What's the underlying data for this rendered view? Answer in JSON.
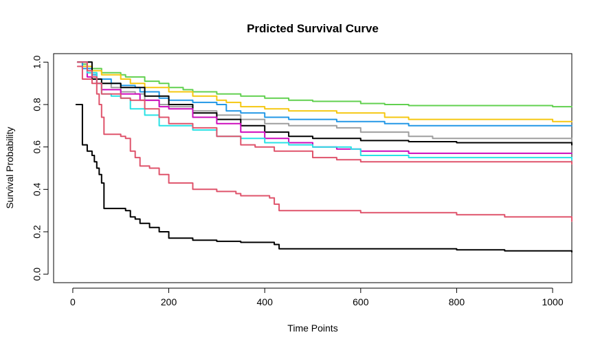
{
  "chart_data": {
    "type": "line",
    "step": true,
    "title": "Prdicted Survival Curve",
    "xlabel": "Time Points",
    "ylabel": "Survival Probability",
    "xlim": [
      -40,
      1040
    ],
    "ylim": [
      -0.04,
      1.04
    ],
    "x_ticks": [
      0,
      200,
      400,
      600,
      800,
      1000
    ],
    "y_ticks": [
      0.0,
      0.2,
      0.4,
      0.6,
      0.8,
      1.0
    ],
    "y_tick_labels": [
      "0.0",
      "0.2",
      "0.4",
      "0.6",
      "0.8",
      "1.0"
    ],
    "grid": false,
    "legend": "none",
    "series": [
      {
        "color": "#61D04F",
        "width": 2,
        "x": [
          10,
          20,
          30,
          40,
          60,
          100,
          110,
          150,
          180,
          200,
          230,
          250,
          300,
          350,
          400,
          450,
          500,
          600,
          650,
          700,
          1000,
          1040
        ],
        "y": [
          1.0,
          0.99,
          0.98,
          0.97,
          0.95,
          0.94,
          0.93,
          0.91,
          0.9,
          0.88,
          0.87,
          0.86,
          0.85,
          0.84,
          0.83,
          0.82,
          0.815,
          0.805,
          0.8,
          0.795,
          0.79,
          0.79
        ]
      },
      {
        "color": "#F5C710",
        "width": 2,
        "x": [
          10,
          20,
          40,
          60,
          100,
          120,
          150,
          200,
          250,
          300,
          320,
          350,
          380,
          400,
          450,
          550,
          650,
          700,
          750,
          1000,
          1040
        ],
        "y": [
          1.0,
          0.98,
          0.96,
          0.94,
          0.92,
          0.9,
          0.88,
          0.86,
          0.84,
          0.82,
          0.81,
          0.79,
          0.79,
          0.78,
          0.77,
          0.76,
          0.74,
          0.73,
          0.73,
          0.72,
          0.72
        ]
      },
      {
        "color": "#2297E6",
        "width": 2,
        "x": [
          10,
          20,
          40,
          50,
          80,
          100,
          130,
          140,
          180,
          200,
          250,
          300,
          320,
          350,
          400,
          450,
          500,
          550,
          600,
          650,
          700,
          1040
        ],
        "y": [
          1.0,
          0.97,
          0.94,
          0.92,
          0.9,
          0.89,
          0.88,
          0.86,
          0.83,
          0.82,
          0.81,
          0.8,
          0.77,
          0.76,
          0.74,
          0.73,
          0.73,
          0.72,
          0.72,
          0.71,
          0.7,
          0.7
        ]
      },
      {
        "color": "#9E9E9E",
        "width": 2,
        "x": [
          10,
          30,
          50,
          80,
          100,
          130,
          150,
          180,
          200,
          250,
          300,
          350,
          400,
          450,
          500,
          550,
          600,
          650,
          700,
          750,
          1040
        ],
        "y": [
          1.0,
          0.95,
          0.9,
          0.88,
          0.86,
          0.85,
          0.82,
          0.8,
          0.79,
          0.77,
          0.75,
          0.73,
          0.71,
          0.7,
          0.7,
          0.69,
          0.67,
          0.67,
          0.65,
          0.64,
          0.63
        ]
      },
      {
        "color": "#000000",
        "width": 1.2,
        "x": [
          10,
          40,
          60,
          100,
          150,
          200,
          250,
          300,
          350,
          400,
          450,
          500,
          600,
          700,
          800,
          1040
        ],
        "y": [
          1.0,
          0.92,
          0.9,
          0.88,
          0.84,
          0.8,
          0.76,
          0.73,
          0.7,
          0.67,
          0.65,
          0.64,
          0.63,
          0.625,
          0.62,
          0.61
        ]
      },
      {
        "color": "#CD0BBC",
        "width": 2,
        "x": [
          10,
          30,
          50,
          60,
          100,
          140,
          180,
          200,
          250,
          300,
          350,
          400,
          450,
          500,
          550,
          600,
          700,
          1040
        ],
        "y": [
          1.0,
          0.93,
          0.9,
          0.87,
          0.85,
          0.82,
          0.79,
          0.78,
          0.74,
          0.71,
          0.67,
          0.64,
          0.62,
          0.6,
          0.59,
          0.58,
          0.57,
          0.57
        ]
      },
      {
        "color": "#28E2E5",
        "width": 2,
        "x": [
          10,
          30,
          50,
          60,
          80,
          100,
          120,
          150,
          180,
          200,
          250,
          300,
          350,
          400,
          450,
          500,
          550,
          580,
          600,
          700,
          800,
          1040
        ],
        "y": [
          1.0,
          0.95,
          0.9,
          0.85,
          0.84,
          0.83,
          0.78,
          0.75,
          0.7,
          0.7,
          0.68,
          0.65,
          0.64,
          0.62,
          0.61,
          0.6,
          0.6,
          0.59,
          0.56,
          0.55,
          0.55,
          0.54
        ]
      },
      {
        "color": "#DF536B",
        "width": 2,
        "x": [
          10,
          30,
          40,
          50,
          60,
          100,
          120,
          150,
          180,
          200,
          250,
          300,
          350,
          380,
          420,
          500,
          550,
          600,
          1040
        ],
        "y": [
          1.0,
          0.96,
          0.93,
          0.9,
          0.85,
          0.83,
          0.82,
          0.78,
          0.74,
          0.71,
          0.69,
          0.65,
          0.61,
          0.6,
          0.58,
          0.55,
          0.54,
          0.53,
          0.52
        ]
      },
      {
        "color": "#DF536B",
        "width": 2,
        "x": [
          10,
          20,
          30,
          40,
          50,
          55,
          60,
          65,
          80,
          100,
          110,
          120,
          130,
          140,
          160,
          180,
          200,
          250,
          300,
          340,
          350,
          410,
          420,
          430,
          440,
          600,
          800,
          900,
          1040
        ],
        "y": [
          0.98,
          0.92,
          0.92,
          0.9,
          0.85,
          0.8,
          0.74,
          0.66,
          0.66,
          0.65,
          0.64,
          0.58,
          0.55,
          0.51,
          0.5,
          0.47,
          0.43,
          0.4,
          0.39,
          0.38,
          0.37,
          0.36,
          0.33,
          0.3,
          0.3,
          0.29,
          0.28,
          0.27,
          0.25
        ]
      },
      {
        "color": "#000000",
        "width": 2,
        "x": [
          7,
          20,
          30,
          40,
          45,
          50,
          55,
          60,
          65,
          110,
          120,
          130,
          140,
          160,
          180,
          200,
          250,
          300,
          350,
          400,
          420,
          430,
          440,
          500,
          700,
          800,
          900,
          1040
        ],
        "y": [
          0.8,
          0.61,
          0.58,
          0.56,
          0.53,
          0.5,
          0.47,
          0.43,
          0.31,
          0.3,
          0.27,
          0.26,
          0.24,
          0.22,
          0.2,
          0.17,
          0.16,
          0.155,
          0.15,
          0.15,
          0.14,
          0.12,
          0.12,
          0.12,
          0.12,
          0.115,
          0.11,
          0.105
        ]
      }
    ]
  }
}
